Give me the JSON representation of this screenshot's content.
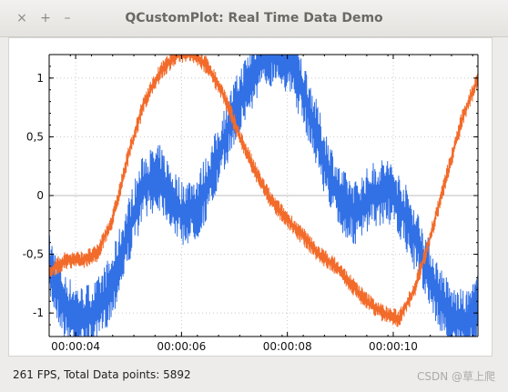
{
  "window": {
    "title": "QCustomPlot: Real Time Data Demo",
    "close_glyph": "×",
    "maximize_glyph": "+",
    "minimize_glyph": "–"
  },
  "status_bar": {
    "text": "261 FPS, Total Data points: 5892"
  },
  "watermark": "CSDN @草上爬",
  "chart_data": {
    "type": "line",
    "title": "",
    "xlabel": "",
    "ylabel": "",
    "xlim": [
      3.5,
      11.6
    ],
    "ylim": [
      -1.2,
      1.2
    ],
    "grid": true,
    "x_ticks": [
      4,
      6,
      8,
      10
    ],
    "x_tick_labels": [
      "00:00:04",
      "00:00:06",
      "00:00:08",
      "00:00:10"
    ],
    "y_ticks": [
      -1,
      -0.5,
      0,
      0.5,
      1
    ],
    "y_tick_labels": [
      "-1",
      "-0,5",
      "0",
      "0,5",
      "1"
    ],
    "series": [
      {
        "color": "#3270e6",
        "x": [
          3.5,
          3.8,
          4.1,
          4.4,
          4.7,
          5.0,
          5.3,
          5.6,
          6.0,
          6.3,
          6.6,
          6.9,
          7.2,
          7.5,
          7.8,
          8.1,
          8.4,
          8.7,
          9.0,
          9.3,
          9.6,
          9.9,
          10.2,
          10.5,
          10.8,
          11.1,
          11.4,
          11.6
        ],
        "y": [
          -0.6,
          -0.95,
          -1.05,
          -1.0,
          -0.75,
          -0.3,
          0.1,
          0.15,
          -0.15,
          -0.1,
          0.2,
          0.6,
          0.9,
          1.15,
          1.25,
          1.1,
          0.75,
          0.3,
          -0.05,
          -0.15,
          0.0,
          0.05,
          -0.15,
          -0.45,
          -0.8,
          -1.05,
          -1.1,
          -0.95
        ],
        "noise": 0.22
      },
      {
        "color": "#f26b2a",
        "x": [
          3.5,
          3.8,
          4.1,
          4.4,
          4.7,
          5.0,
          5.3,
          5.6,
          5.9,
          6.2,
          6.5,
          6.8,
          7.1,
          7.4,
          7.7,
          8.0,
          8.3,
          8.6,
          8.9,
          9.2,
          9.5,
          9.8,
          10.1,
          10.4,
          10.7,
          11.0,
          11.3,
          11.6
        ],
        "y": [
          -0.65,
          -0.55,
          -0.55,
          -0.5,
          -0.2,
          0.35,
          0.8,
          1.05,
          1.2,
          1.2,
          1.1,
          0.85,
          0.5,
          0.2,
          -0.05,
          -0.2,
          -0.35,
          -0.5,
          -0.6,
          -0.75,
          -0.9,
          -1.0,
          -1.05,
          -0.8,
          -0.35,
          0.15,
          0.65,
          1.0
        ],
        "noise": 0.06
      }
    ]
  }
}
